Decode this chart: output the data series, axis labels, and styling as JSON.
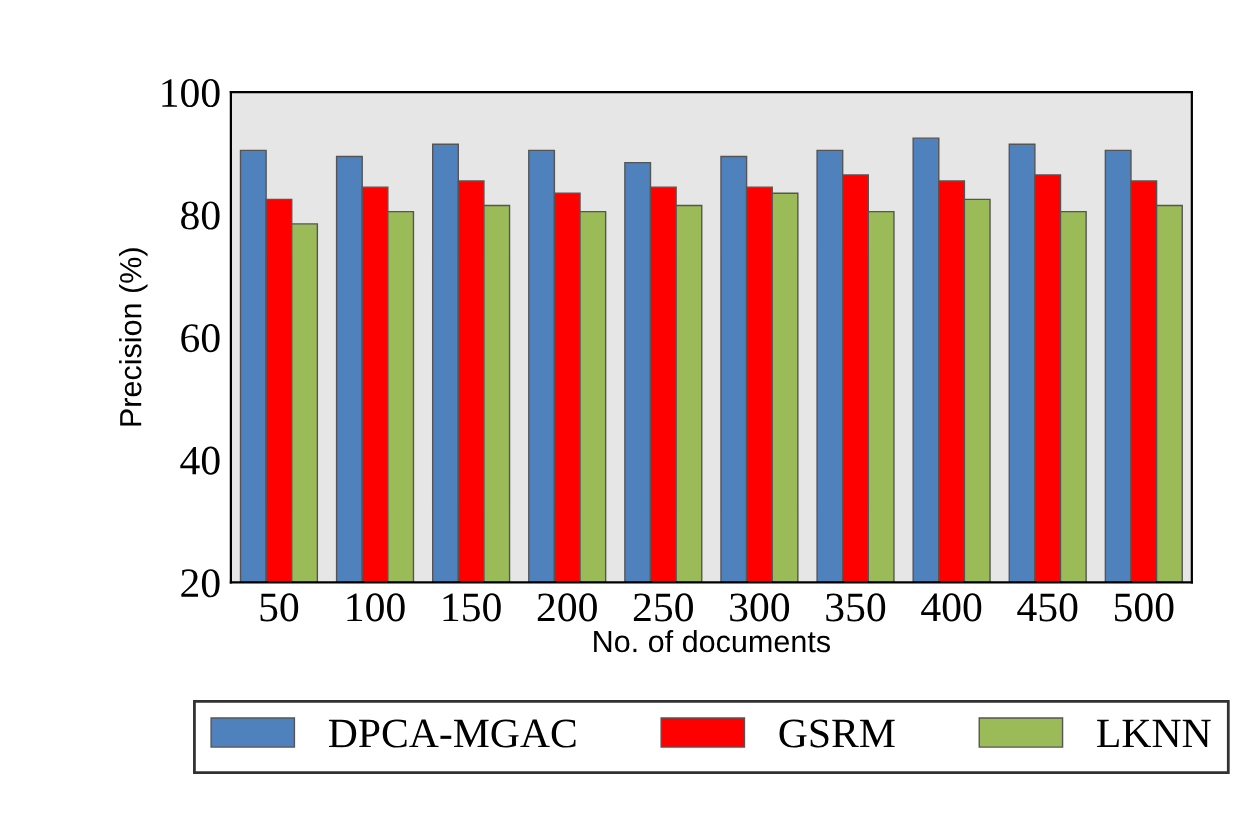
{
  "chart_data": {
    "type": "bar",
    "xlabel": "No. of documents",
    "ylabel": "Precision (%)",
    "categories": [
      "50",
      "100",
      "150",
      "200",
      "250",
      "300",
      "350",
      "400",
      "450",
      "500"
    ],
    "series": [
      {
        "name": "DPCA-MGAC",
        "color": "#4f81bd",
        "values": [
          90.5,
          89.5,
          91.5,
          90.5,
          88.5,
          89.5,
          90.5,
          92.5,
          91.5,
          90.5
        ]
      },
      {
        "name": "GSRM",
        "color": "#ff0000",
        "values": [
          82.5,
          84.5,
          85.5,
          83.5,
          84.5,
          84.5,
          86.5,
          85.5,
          86.5,
          85.5
        ]
      },
      {
        "name": "LKNN",
        "color": "#9bbb59",
        "values": [
          78.5,
          80.5,
          81.5,
          80.5,
          81.5,
          83.5,
          80.5,
          82.5,
          80.5,
          81.5
        ]
      }
    ],
    "ylim": [
      20,
      100
    ],
    "yticks": [
      20,
      40,
      60,
      80,
      100
    ],
    "grid": false,
    "legend": "bottom"
  }
}
